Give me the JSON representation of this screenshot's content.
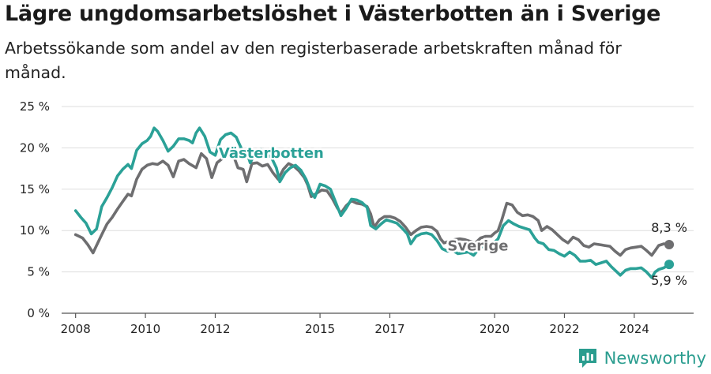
{
  "title": "Lägre ungdomsarbetslöshet i Västerbotten än i Sverige",
  "subtitle": "Arbetssökande som andel av den registerbaserade arbetskraften månad för månad.",
  "brand": {
    "name": "Newsworthy",
    "icon": "bar-chart-logo-icon"
  },
  "chart_data": {
    "type": "line",
    "title": "Lägre ungdomsarbetslöshet i Västerbotten än i Sverige",
    "subtitle": "Arbetssökande som andel av den registerbaserade arbetskraften månad för månad.",
    "xlabel": "",
    "ylabel": "",
    "xlim": [
      2007.6,
      2025.7
    ],
    "ylim": [
      0,
      25
    ],
    "x_ticks": [
      2008,
      2010,
      2012,
      2015,
      2017,
      2020,
      2022,
      2024
    ],
    "x_tick_labels": [
      "2008",
      "2010",
      "2012",
      "2015",
      "2017",
      "2020",
      "2022",
      "2024"
    ],
    "y_ticks": [
      0,
      5,
      10,
      15,
      20,
      25
    ],
    "y_tick_labels": [
      "0 %",
      "5 %",
      "10 %",
      "15 %",
      "20 %",
      "25 %"
    ],
    "grid": "horizontal",
    "legend": "none",
    "series": [
      {
        "name": "Sverige",
        "color": "#6e6e70",
        "end_label": "8,3 %",
        "points": [
          [
            2008.0,
            9.5
          ],
          [
            2008.2,
            9.1
          ],
          [
            2008.35,
            8.3
          ],
          [
            2008.5,
            7.3
          ],
          [
            2008.6,
            8.2
          ],
          [
            2008.75,
            9.5
          ],
          [
            2008.9,
            10.8
          ],
          [
            2009.05,
            11.6
          ],
          [
            2009.2,
            12.6
          ],
          [
            2009.35,
            13.5
          ],
          [
            2009.5,
            14.4
          ],
          [
            2009.6,
            14.2
          ],
          [
            2009.75,
            16.2
          ],
          [
            2009.9,
            17.4
          ],
          [
            2010.05,
            17.9
          ],
          [
            2010.2,
            18.1
          ],
          [
            2010.35,
            18.0
          ],
          [
            2010.5,
            18.4
          ],
          [
            2010.65,
            17.9
          ],
          [
            2010.8,
            16.5
          ],
          [
            2010.95,
            18.4
          ],
          [
            2011.1,
            18.6
          ],
          [
            2011.25,
            18.1
          ],
          [
            2011.45,
            17.6
          ],
          [
            2011.6,
            19.3
          ],
          [
            2011.75,
            18.7
          ],
          [
            2011.9,
            16.4
          ],
          [
            2012.05,
            18.2
          ],
          [
            2012.2,
            18.7
          ],
          [
            2012.35,
            19.0
          ],
          [
            2012.5,
            19.3
          ],
          [
            2012.65,
            17.6
          ],
          [
            2012.8,
            17.4
          ],
          [
            2012.9,
            15.9
          ],
          [
            2013.05,
            18.1
          ],
          [
            2013.2,
            18.2
          ],
          [
            2013.35,
            17.8
          ],
          [
            2013.5,
            18.0
          ],
          [
            2013.65,
            17.0
          ],
          [
            2013.8,
            16.2
          ],
          [
            2013.95,
            17.4
          ],
          [
            2014.1,
            18.1
          ],
          [
            2014.25,
            17.8
          ],
          [
            2014.4,
            17.2
          ],
          [
            2014.55,
            16.4
          ],
          [
            2014.65,
            15.5
          ],
          [
            2014.75,
            14.1
          ],
          [
            2014.9,
            14.5
          ],
          [
            2015.05,
            14.9
          ],
          [
            2015.2,
            14.8
          ],
          [
            2015.35,
            13.9
          ],
          [
            2015.5,
            12.7
          ],
          [
            2015.6,
            12.1
          ],
          [
            2015.75,
            13.0
          ],
          [
            2015.9,
            13.6
          ],
          [
            2016.05,
            13.3
          ],
          [
            2016.2,
            13.2
          ],
          [
            2016.35,
            12.9
          ],
          [
            2016.45,
            12.0
          ],
          [
            2016.55,
            10.4
          ],
          [
            2016.7,
            11.3
          ],
          [
            2016.85,
            11.7
          ],
          [
            2017.0,
            11.7
          ],
          [
            2017.15,
            11.5
          ],
          [
            2017.3,
            11.1
          ],
          [
            2017.45,
            10.4
          ],
          [
            2017.6,
            9.5
          ],
          [
            2017.75,
            10.0
          ],
          [
            2017.9,
            10.4
          ],
          [
            2018.05,
            10.5
          ],
          [
            2018.2,
            10.4
          ],
          [
            2018.35,
            9.9
          ],
          [
            2018.45,
            9.0
          ],
          [
            2018.55,
            8.5
          ],
          [
            2018.7,
            8.7
          ],
          [
            2018.85,
            8.9
          ],
          [
            2019.0,
            9.0
          ],
          [
            2019.15,
            8.9
          ],
          [
            2019.3,
            8.7
          ],
          [
            2019.45,
            8.5
          ],
          [
            2019.6,
            9.1
          ],
          [
            2019.75,
            9.3
          ],
          [
            2019.9,
            9.3
          ],
          [
            2020.0,
            9.7
          ],
          [
            2020.1,
            10.0
          ],
          [
            2020.2,
            11.2
          ],
          [
            2020.35,
            13.3
          ],
          [
            2020.5,
            13.1
          ],
          [
            2020.65,
            12.2
          ],
          [
            2020.8,
            11.8
          ],
          [
            2020.95,
            11.9
          ],
          [
            2021.1,
            11.7
          ],
          [
            2021.25,
            11.2
          ],
          [
            2021.35,
            10.0
          ],
          [
            2021.5,
            10.5
          ],
          [
            2021.65,
            10.1
          ],
          [
            2021.8,
            9.5
          ],
          [
            2021.95,
            8.9
          ],
          [
            2022.1,
            8.5
          ],
          [
            2022.25,
            9.2
          ],
          [
            2022.4,
            8.9
          ],
          [
            2022.55,
            8.2
          ],
          [
            2022.7,
            8.0
          ],
          [
            2022.85,
            8.4
          ],
          [
            2023.0,
            8.3
          ],
          [
            2023.15,
            8.2
          ],
          [
            2023.3,
            8.1
          ],
          [
            2023.45,
            7.5
          ],
          [
            2023.6,
            7.0
          ],
          [
            2023.75,
            7.7
          ],
          [
            2023.9,
            7.9
          ],
          [
            2024.05,
            8.0
          ],
          [
            2024.2,
            8.1
          ],
          [
            2024.35,
            7.6
          ],
          [
            2024.5,
            7.0
          ],
          [
            2024.6,
            7.6
          ],
          [
            2024.7,
            8.2
          ],
          [
            2024.85,
            8.4
          ],
          [
            2025.0,
            8.3
          ]
        ]
      },
      {
        "name": "Västerbotten",
        "color": "#2ba197",
        "end_label": "5,9 %",
        "points": [
          [
            2008.0,
            12.4
          ],
          [
            2008.15,
            11.6
          ],
          [
            2008.3,
            10.9
          ],
          [
            2008.45,
            9.6
          ],
          [
            2008.6,
            10.2
          ],
          [
            2008.75,
            12.9
          ],
          [
            2008.9,
            14.0
          ],
          [
            2009.05,
            15.2
          ],
          [
            2009.2,
            16.6
          ],
          [
            2009.35,
            17.4
          ],
          [
            2009.5,
            18.0
          ],
          [
            2009.6,
            17.5
          ],
          [
            2009.75,
            19.7
          ],
          [
            2009.9,
            20.5
          ],
          [
            2010.05,
            20.9
          ],
          [
            2010.15,
            21.4
          ],
          [
            2010.25,
            22.4
          ],
          [
            2010.35,
            22.0
          ],
          [
            2010.5,
            20.9
          ],
          [
            2010.65,
            19.6
          ],
          [
            2010.8,
            20.2
          ],
          [
            2010.95,
            21.1
          ],
          [
            2011.1,
            21.1
          ],
          [
            2011.25,
            20.9
          ],
          [
            2011.35,
            20.6
          ],
          [
            2011.45,
            21.8
          ],
          [
            2011.55,
            22.4
          ],
          [
            2011.7,
            21.4
          ],
          [
            2011.85,
            19.5
          ],
          [
            2012.0,
            19.1
          ],
          [
            2012.15,
            21.0
          ],
          [
            2012.3,
            21.6
          ],
          [
            2012.45,
            21.8
          ],
          [
            2012.6,
            21.3
          ],
          [
            2012.75,
            19.9
          ],
          [
            2012.9,
            19.5
          ],
          [
            2013.0,
            18.2
          ],
          [
            2013.15,
            19.4
          ],
          [
            2013.3,
            19.8
          ],
          [
            2013.45,
            19.2
          ],
          [
            2013.6,
            18.9
          ],
          [
            2013.75,
            17.6
          ],
          [
            2013.85,
            15.9
          ],
          [
            2014.0,
            17.0
          ],
          [
            2014.15,
            17.6
          ],
          [
            2014.3,
            17.9
          ],
          [
            2014.45,
            17.3
          ],
          [
            2014.6,
            16.2
          ],
          [
            2014.75,
            14.6
          ],
          [
            2014.85,
            14.0
          ],
          [
            2015.0,
            15.6
          ],
          [
            2015.15,
            15.4
          ],
          [
            2015.3,
            15.0
          ],
          [
            2015.45,
            13.4
          ],
          [
            2015.6,
            11.8
          ],
          [
            2015.75,
            12.7
          ],
          [
            2015.9,
            13.8
          ],
          [
            2016.05,
            13.7
          ],
          [
            2016.2,
            13.4
          ],
          [
            2016.35,
            12.8
          ],
          [
            2016.45,
            10.6
          ],
          [
            2016.6,
            10.2
          ],
          [
            2016.75,
            10.8
          ],
          [
            2016.9,
            11.3
          ],
          [
            2017.05,
            11.1
          ],
          [
            2017.2,
            10.9
          ],
          [
            2017.35,
            10.3
          ],
          [
            2017.5,
            9.6
          ],
          [
            2017.6,
            8.4
          ],
          [
            2017.75,
            9.3
          ],
          [
            2017.9,
            9.6
          ],
          [
            2018.05,
            9.7
          ],
          [
            2018.2,
            9.5
          ],
          [
            2018.35,
            8.8
          ],
          [
            2018.5,
            7.8
          ],
          [
            2018.65,
            7.5
          ],
          [
            2018.8,
            7.6
          ],
          [
            2018.95,
            7.2
          ],
          [
            2019.1,
            7.3
          ],
          [
            2019.25,
            7.4
          ],
          [
            2019.4,
            7.0
          ],
          [
            2019.55,
            7.8
          ],
          [
            2019.7,
            8.2
          ],
          [
            2019.85,
            8.0
          ],
          [
            2020.0,
            8.6
          ],
          [
            2020.1,
            9.0
          ],
          [
            2020.25,
            10.6
          ],
          [
            2020.4,
            11.2
          ],
          [
            2020.55,
            10.8
          ],
          [
            2020.7,
            10.5
          ],
          [
            2020.85,
            10.3
          ],
          [
            2021.0,
            10.1
          ],
          [
            2021.15,
            9.1
          ],
          [
            2021.25,
            8.6
          ],
          [
            2021.4,
            8.4
          ],
          [
            2021.55,
            7.7
          ],
          [
            2021.7,
            7.6
          ],
          [
            2021.85,
            7.2
          ],
          [
            2022.0,
            6.9
          ],
          [
            2022.15,
            7.4
          ],
          [
            2022.3,
            7.0
          ],
          [
            2022.45,
            6.3
          ],
          [
            2022.6,
            6.3
          ],
          [
            2022.75,
            6.4
          ],
          [
            2022.9,
            5.9
          ],
          [
            2023.05,
            6.1
          ],
          [
            2023.2,
            6.3
          ],
          [
            2023.35,
            5.6
          ],
          [
            2023.5,
            5.0
          ],
          [
            2023.6,
            4.6
          ],
          [
            2023.75,
            5.2
          ],
          [
            2023.9,
            5.4
          ],
          [
            2024.05,
            5.4
          ],
          [
            2024.2,
            5.5
          ],
          [
            2024.35,
            5.0
          ],
          [
            2024.5,
            4.3
          ],
          [
            2024.6,
            5.0
          ],
          [
            2024.7,
            5.3
          ],
          [
            2024.85,
            5.5
          ],
          [
            2025.0,
            5.9
          ]
        ]
      }
    ]
  }
}
